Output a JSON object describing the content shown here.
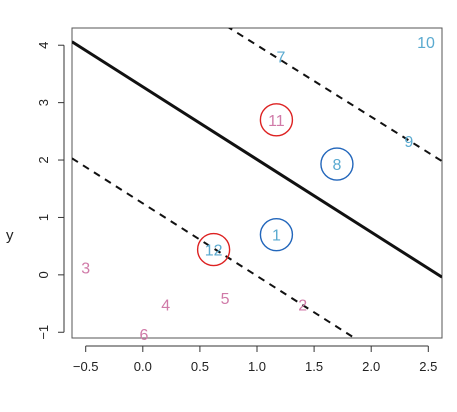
{
  "chart_data": {
    "type": "scatter",
    "ylabel": "y",
    "xlim": [
      -0.62,
      2.62
    ],
    "ylim": [
      -1.1,
      4.3
    ],
    "x_ticks": [
      "−0.5",
      "0.0",
      "0.5",
      "1.0",
      "1.5",
      "2.0",
      "2.5"
    ],
    "x_tick_values": [
      -0.5,
      0.0,
      0.5,
      1.0,
      1.5,
      2.0,
      2.5
    ],
    "y_ticks": [
      "−1",
      "0",
      "1",
      "2",
      "3",
      "4"
    ],
    "y_tick_values": [
      -1,
      0,
      1,
      2,
      3,
      4
    ],
    "grid": false,
    "points": [
      {
        "label": "1",
        "x": 1.17,
        "y": 0.7,
        "color": "#5aaad0",
        "circle": "#2266bb"
      },
      {
        "label": "2",
        "x": 1.4,
        "y": -0.52,
        "color": "#d07aa8",
        "circle": null
      },
      {
        "label": "3",
        "x": -0.5,
        "y": 0.13,
        "color": "#d07aa8",
        "circle": null
      },
      {
        "label": "4",
        "x": 0.2,
        "y": -0.52,
        "color": "#d07aa8",
        "circle": null
      },
      {
        "label": "5",
        "x": 0.72,
        "y": -0.4,
        "color": "#d07aa8",
        "circle": null
      },
      {
        "label": "6",
        "x": 0.01,
        "y": -1.03,
        "color": "#d07aa8",
        "circle": null
      },
      {
        "label": "7",
        "x": 1.21,
        "y": 3.8,
        "color": "#5aaad0",
        "circle": null
      },
      {
        "label": "8",
        "x": 1.7,
        "y": 1.93,
        "color": "#5aaad0",
        "circle": "#2266bb"
      },
      {
        "label": "9",
        "x": 2.33,
        "y": 2.33,
        "color": "#5aaad0",
        "circle": null
      },
      {
        "label": "10",
        "x": 2.48,
        "y": 4.06,
        "color": "#5aaad0",
        "circle": null
      },
      {
        "label": "11",
        "x": 1.17,
        "y": 2.7,
        "color": "#d07aa8",
        "circle": "#dd2222"
      },
      {
        "label": "12",
        "x": 0.62,
        "y": 0.44,
        "color": "#5aaad0",
        "circle": "#dd2222"
      }
    ],
    "lines": [
      {
        "name": "hyperplane",
        "style": "solid",
        "x1": -0.62,
        "y1": 4.06,
        "x2": 2.62,
        "y2": -0.04
      },
      {
        "name": "margin-lower",
        "style": "dashed",
        "x1": -0.62,
        "y1": 2.03,
        "x2": 2.62,
        "y2": -2.07
      },
      {
        "name": "margin-upper",
        "style": "dashed",
        "x1": -0.62,
        "y1": 6.02,
        "x2": 2.62,
        "y2": 1.98
      }
    ]
  }
}
